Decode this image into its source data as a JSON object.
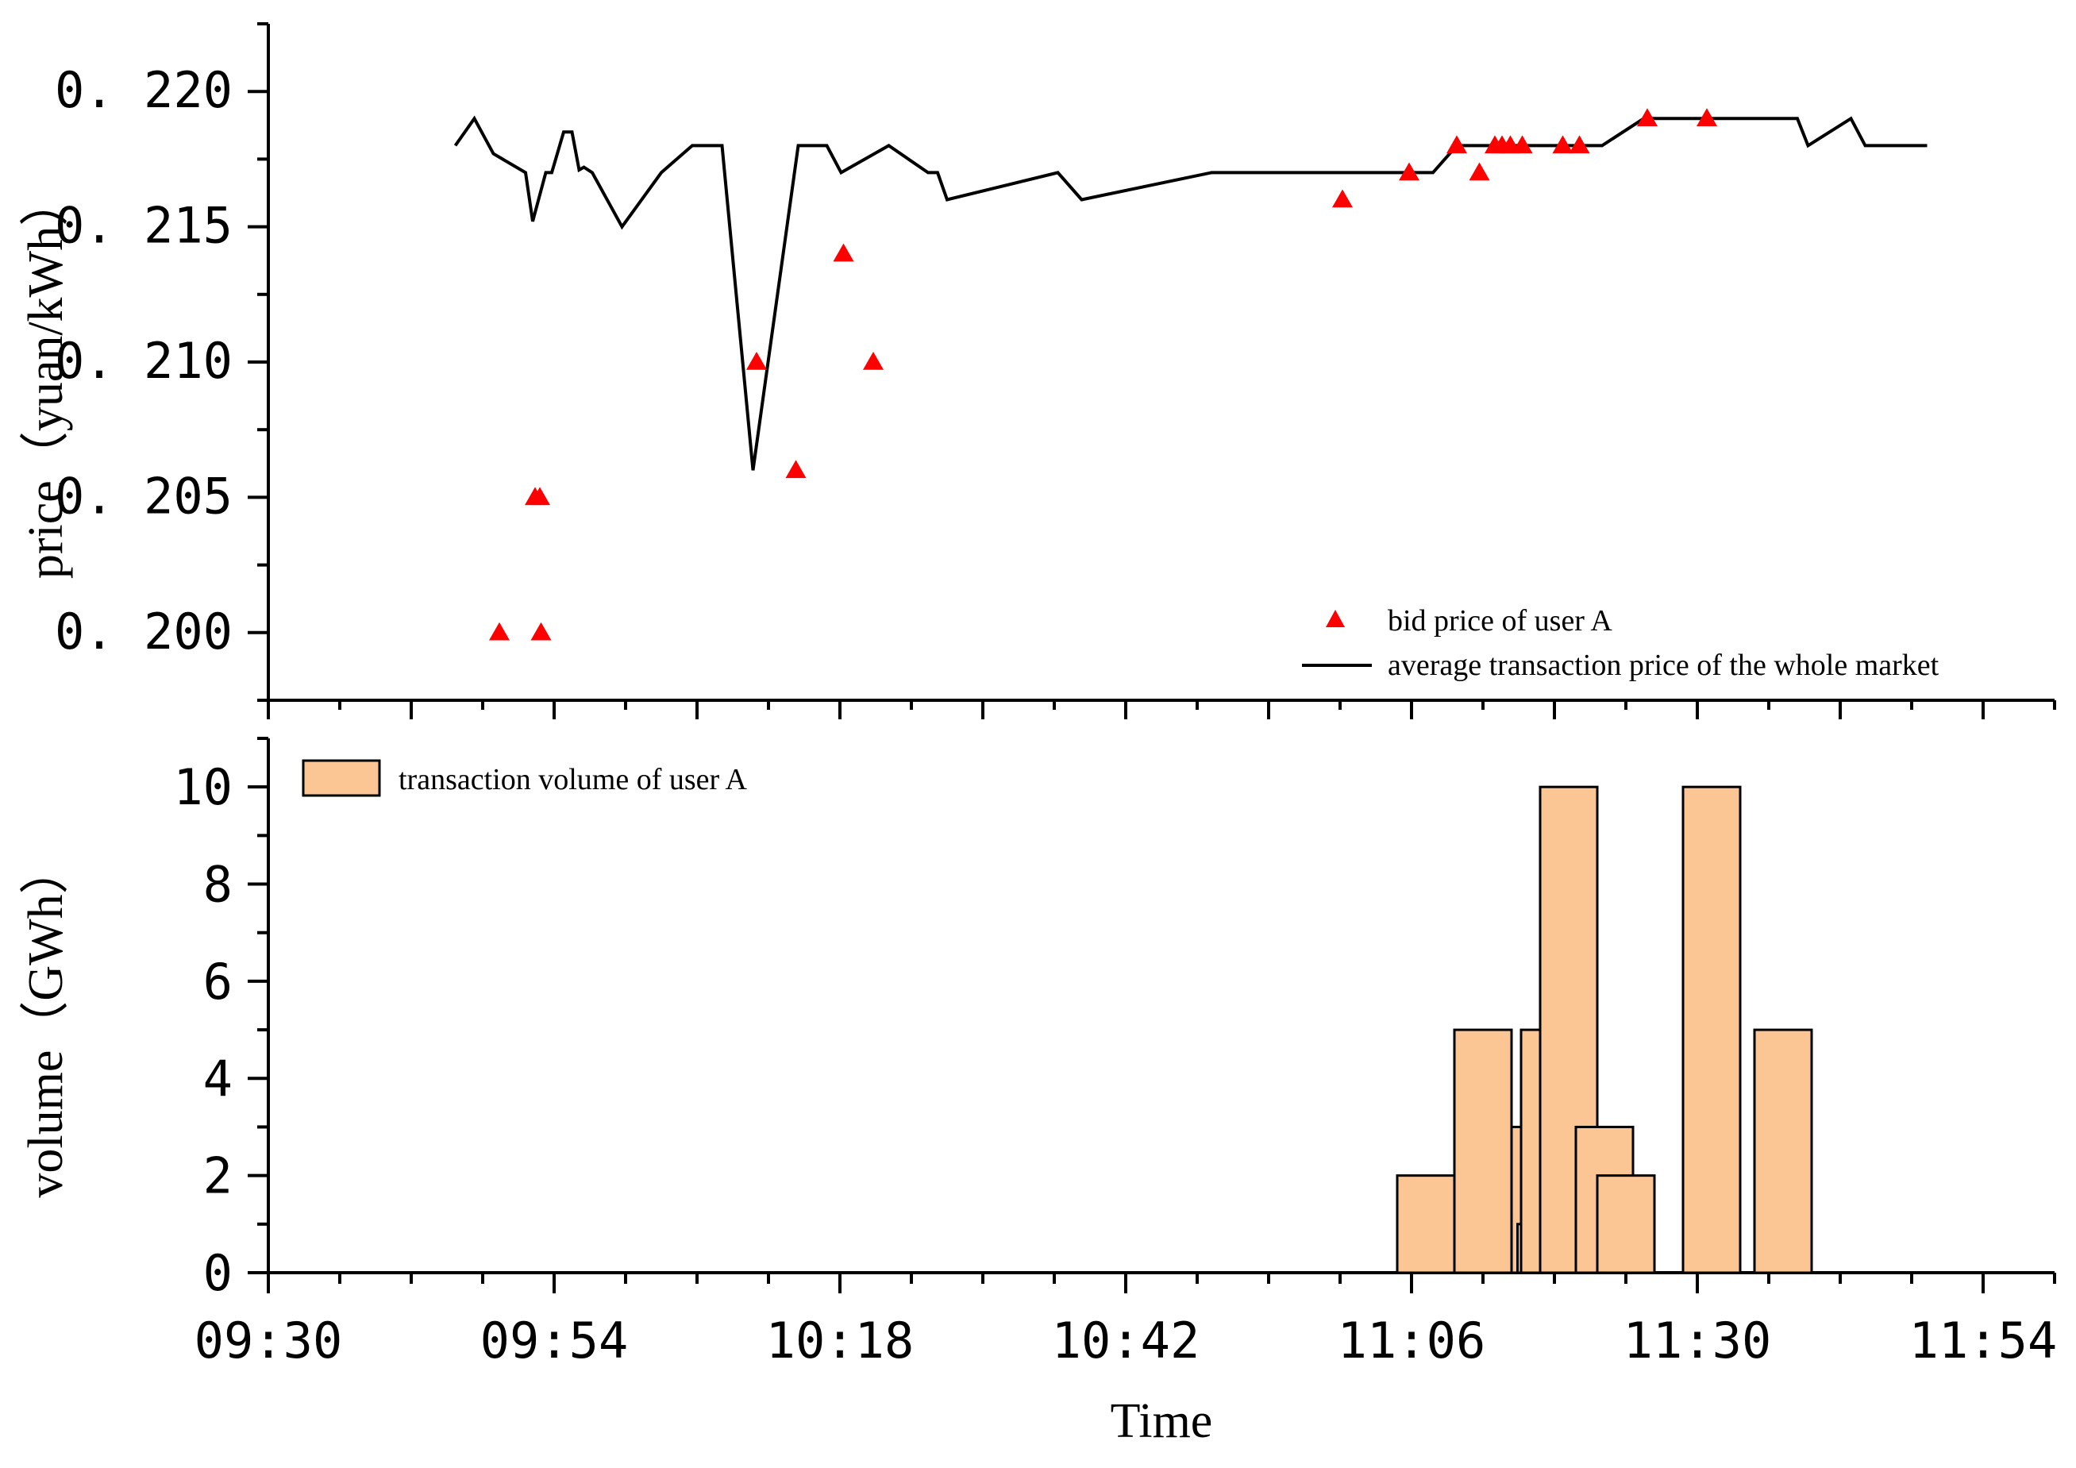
{
  "chart_data": [
    {
      "type": "line+scatter",
      "ylabel": "price（yuan/kWh）",
      "ylim": [
        0.1975,
        0.2225
      ],
      "yticks": [
        "0.200",
        "0.205",
        "0.210",
        "0.215",
        "0.220"
      ],
      "ytick_values": [
        0.2,
        0.205,
        0.21,
        0.215,
        0.22
      ],
      "series": [
        {
          "name": "bid price of user A",
          "kind": "scatter",
          "marker": "triangle",
          "color": "#ff0000",
          "points": [
            [
              19.4,
              0.2
            ],
            [
              22.4,
              0.205
            ],
            [
              22.8,
              0.205
            ],
            [
              22.9,
              0.2
            ],
            [
              41.0,
              0.21
            ],
            [
              44.3,
              0.206
            ],
            [
              48.3,
              0.214
            ],
            [
              50.8,
              0.21
            ],
            [
              90.2,
              0.216
            ],
            [
              95.8,
              0.217
            ],
            [
              99.8,
              0.218
            ],
            [
              101.7,
              0.217
            ],
            [
              103.0,
              0.218
            ],
            [
              103.6,
              0.218
            ],
            [
              104.3,
              0.218
            ],
            [
              105.3,
              0.218
            ],
            [
              108.7,
              0.218
            ],
            [
              110.1,
              0.218
            ],
            [
              115.8,
              0.219
            ],
            [
              120.8,
              0.219
            ]
          ]
        },
        {
          "name": "average transaction price of the whole market",
          "kind": "line",
          "color": "#000000",
          "points": [
            [
              15.7,
              0.218
            ],
            [
              17.3,
              0.219
            ],
            [
              18.9,
              0.2177
            ],
            [
              21.6,
              0.217
            ],
            [
              22.2,
              0.2152
            ],
            [
              23.3,
              0.217
            ],
            [
              23.8,
              0.217
            ],
            [
              24.8,
              0.2185
            ],
            [
              25.5,
              0.2185
            ],
            [
              26.1,
              0.2171
            ],
            [
              26.5,
              0.2172
            ],
            [
              27.2,
              0.217
            ],
            [
              29.7,
              0.215
            ],
            [
              33.0,
              0.217
            ],
            [
              35.6,
              0.218
            ],
            [
              38.1,
              0.218
            ],
            [
              40.7,
              0.206
            ],
            [
              44.5,
              0.218
            ],
            [
              46.9,
              0.218
            ],
            [
              48.1,
              0.217
            ],
            [
              52.1,
              0.218
            ],
            [
              55.4,
              0.217
            ],
            [
              56.2,
              0.217
            ],
            [
              57.0,
              0.216
            ],
            [
              66.3,
              0.217
            ],
            [
              68.3,
              0.216
            ],
            [
              79.2,
              0.217
            ],
            [
              97.8,
              0.217
            ],
            [
              99.8,
              0.218
            ],
            [
              112.0,
              0.218
            ],
            [
              115.5,
              0.219
            ],
            [
              128.4,
              0.219
            ],
            [
              129.3,
              0.218
            ],
            [
              132.9,
              0.219
            ],
            [
              134.1,
              0.218
            ],
            [
              139.3,
              0.218
            ]
          ]
        }
      ],
      "legend_position": "bottom-right"
    },
    {
      "type": "bar",
      "xlabel": "Time",
      "ylabel": "volume（GWh）",
      "ylim": [
        0,
        11
      ],
      "yticks": [
        "0",
        "2",
        "4",
        "6",
        "8",
        "10"
      ],
      "ytick_values": [
        0,
        2,
        4,
        6,
        8,
        10
      ],
      "xlim_minutes_after_0930": [
        0,
        150
      ],
      "xticks": [
        "09:30",
        "09:54",
        "10:18",
        "10:42",
        "11:06",
        "11:30",
        "11:54"
      ],
      "xtick_values": [
        0,
        24,
        48,
        72,
        96,
        120,
        144
      ],
      "series": [
        {
          "name": "transaction volume of user A",
          "color": "#fcc594",
          "bars": [
            {
              "start": 94.8,
              "end": 99.6,
              "value": 2
            },
            {
              "start": 99.6,
              "end": 104.4,
              "value": 5
            },
            {
              "start": 104.4,
              "end": 105.3,
              "value": 3
            },
            {
              "start": 104.9,
              "end": 105.5,
              "value": 1
            },
            {
              "start": 105.2,
              "end": 106.8,
              "value": 5
            },
            {
              "start": 106.8,
              "end": 111.6,
              "value": 10
            },
            {
              "start": 109.8,
              "end": 114.6,
              "value": 3
            },
            {
              "start": 111.6,
              "end": 116.4,
              "value": 2
            },
            {
              "start": 118.8,
              "end": 123.6,
              "value": 10
            },
            {
              "start": 124.8,
              "end": 129.6,
              "value": 5
            }
          ]
        }
      ],
      "legend_position": "top-left"
    }
  ]
}
